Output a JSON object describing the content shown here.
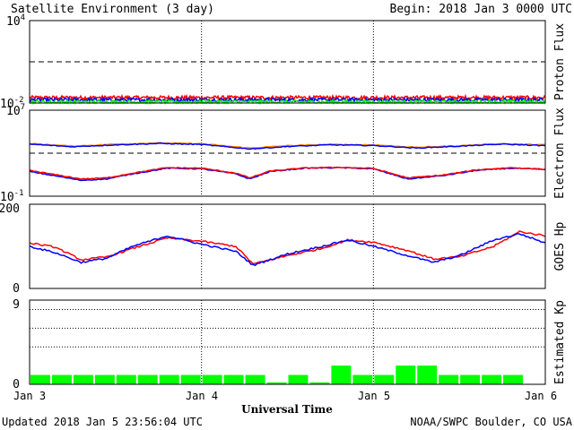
{
  "header": {
    "title": "Satellite Environment (3 day)",
    "begin": "Begin:  2018 Jan 3 0000 UTC"
  },
  "footer": {
    "updated": "Updated 2018 Jan  5 23:56:04 UTC",
    "source": "NOAA/SWPC Boulder, CO USA"
  },
  "chart_data": [
    {
      "type": "line",
      "title": "",
      "ylabel": "Proton Flux",
      "yscale": "log",
      "ylim": [
        0.01,
        10000
      ],
      "y_tick_labels": {
        "top": "4",
        "bottom": "-2"
      },
      "threshold": 10,
      "x_range_days": [
        0,
        3
      ],
      "series": [
        {
          "color": "#ff0000",
          "base": 0.025
        },
        {
          "color": "#0000ff",
          "base": 0.017
        },
        {
          "color": "#00ff00",
          "base": 0.012
        }
      ]
    },
    {
      "type": "line",
      "ylabel": "Electron Flux",
      "yscale": "log",
      "ylim": [
        0.1,
        10000000
      ],
      "y_tick_labels": {
        "top": "7",
        "bottom": "-1"
      },
      "threshold": 1000,
      "x_range_days": [
        0,
        3
      ],
      "series": [
        {
          "color": "#ff8c00",
          "values_note": "upper pair",
          "x": [
            0,
            0.25,
            0.5,
            0.75,
            1.0,
            1.28,
            1.5,
            1.75,
            2.0,
            2.25,
            2.5,
            2.75,
            3.0
          ],
          "y": [
            8000,
            4500,
            7000,
            9000,
            7500,
            3000,
            5000,
            6500,
            6000,
            3500,
            5000,
            7500,
            6000
          ]
        },
        {
          "color": "#0000ff",
          "x": [
            0,
            0.25,
            0.5,
            0.75,
            1.0,
            1.28,
            1.5,
            1.75,
            2.0,
            2.25,
            2.5,
            2.75,
            3.0
          ],
          "y": [
            7000,
            4000,
            6000,
            8000,
            6500,
            2500,
            4200,
            6000,
            5200,
            3000,
            4500,
            7000,
            5000
          ]
        },
        {
          "color": "#0000ff",
          "x": [
            0,
            0.3,
            0.45,
            0.6,
            0.8,
            1.0,
            1.2,
            1.28,
            1.4,
            1.6,
            1.8,
            2.0,
            2.2,
            2.4,
            2.6,
            2.8,
            3.0
          ],
          "y": [
            20,
            3,
            4,
            12,
            40,
            35,
            12,
            4,
            20,
            40,
            45,
            35,
            4,
            8,
            25,
            40,
            30
          ]
        },
        {
          "color": "#ff0000",
          "x": [
            0,
            0.3,
            0.45,
            0.6,
            0.8,
            1.0,
            1.2,
            1.28,
            1.4,
            1.6,
            1.8,
            2.0,
            2.2,
            2.4,
            2.6,
            2.8,
            3.0
          ],
          "y": [
            25,
            4,
            5,
            14,
            45,
            40,
            14,
            5,
            22,
            42,
            48,
            38,
            5,
            9,
            28,
            45,
            32
          ]
        }
      ]
    },
    {
      "type": "line",
      "ylabel": "GOES Hp",
      "ylim": [
        0,
        200
      ],
      "y_tick_labels": [
        "0",
        "200"
      ],
      "x_range_days": [
        0,
        3
      ],
      "series": [
        {
          "color": "#ff0000",
          "x": [
            0,
            0.15,
            0.3,
            0.45,
            0.6,
            0.8,
            1.0,
            1.2,
            1.3,
            1.5,
            1.7,
            1.85,
            2.0,
            2.2,
            2.35,
            2.5,
            2.7,
            2.85,
            3.0
          ],
          "y": [
            108,
            98,
            68,
            75,
            95,
            120,
            112,
            100,
            58,
            78,
            95,
            115,
            110,
            90,
            70,
            75,
            100,
            135,
            125
          ]
        },
        {
          "color": "#0000ff",
          "x": [
            0,
            0.15,
            0.3,
            0.45,
            0.6,
            0.8,
            1.0,
            1.2,
            1.3,
            1.5,
            1.7,
            1.85,
            2.0,
            2.2,
            2.35,
            2.5,
            2.7,
            2.85,
            3.0
          ],
          "y": [
            100,
            85,
            62,
            72,
            100,
            125,
            105,
            88,
            55,
            82,
            100,
            115,
            100,
            78,
            62,
            78,
            115,
            130,
            108
          ]
        }
      ]
    },
    {
      "type": "bar",
      "ylabel": "Estimated Kp",
      "ylim": [
        0,
        9
      ],
      "y_tick_labels": [
        "0",
        "9"
      ],
      "grid_levels": [
        4,
        6,
        8
      ],
      "bar_color": "#00ff00",
      "interval_hours": 3,
      "values": [
        1,
        1,
        1,
        1,
        1,
        1,
        1,
        1,
        1,
        1,
        1,
        0.2,
        1,
        0.2,
        2,
        1,
        1,
        2,
        2,
        1,
        1,
        1,
        1,
        0
      ]
    }
  ],
  "x_axis": {
    "label": "Universal Time",
    "ticks": [
      "Jan 3",
      "Jan 4",
      "Jan 5",
      "Jan 6"
    ]
  }
}
